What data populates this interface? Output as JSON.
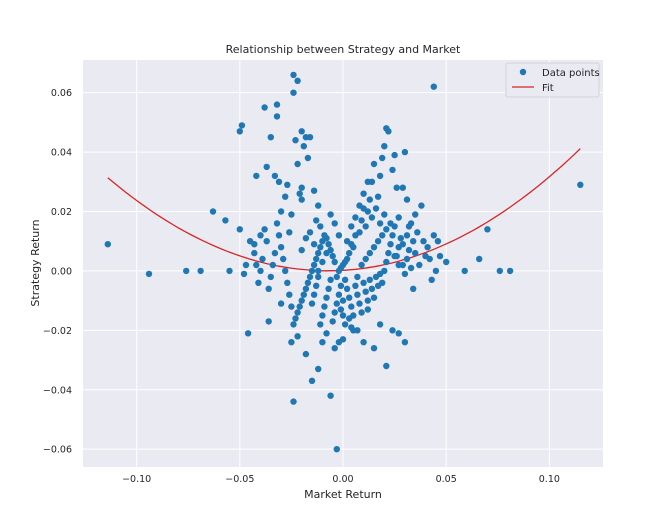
{
  "chart_data": {
    "type": "scatter",
    "title": "Relationship between Strategy and Market",
    "xlabel": "Market Return",
    "ylabel": "Strategy Return",
    "xlim": [
      -0.126,
      0.126
    ],
    "ylim": [
      -0.066,
      0.071
    ],
    "x_ticks": [
      -0.1,
      -0.05,
      0.0,
      0.05,
      0.1
    ],
    "x_tick_labels": [
      "−0.10",
      "−0.05",
      "0.00",
      "0.05",
      "0.10"
    ],
    "y_ticks": [
      -0.06,
      -0.04,
      -0.02,
      0.0,
      0.02,
      0.04,
      0.06
    ],
    "y_tick_labels": [
      "−0.06",
      "−0.04",
      "−0.02",
      "0.00",
      "0.02",
      "0.04",
      "0.06"
    ],
    "grid": true,
    "legend_position": "top-right",
    "colors": {
      "points": "#1f77b4",
      "fit": "#d62728",
      "background": "#eaeaf2",
      "grid": "#ffffff"
    },
    "series": [
      {
        "name": "Data points",
        "kind": "scatter",
        "points": [
          [
            -0.114,
            0.009
          ],
          [
            -0.094,
            -0.001
          ],
          [
            -0.076,
            0.0
          ],
          [
            -0.069,
            0.0
          ],
          [
            -0.063,
            0.02
          ],
          [
            -0.057,
            0.017
          ],
          [
            -0.055,
            0.0
          ],
          [
            -0.05,
            0.047
          ],
          [
            -0.049,
            0.049
          ],
          [
            -0.05,
            0.014
          ],
          [
            -0.048,
            -0.001
          ],
          [
            -0.046,
            -0.021
          ],
          [
            -0.045,
            0.01
          ],
          [
            -0.047,
            0.002
          ],
          [
            -0.043,
            0.009
          ],
          [
            -0.042,
            0.032
          ],
          [
            -0.04,
            0.012
          ],
          [
            -0.038,
            0.055
          ],
          [
            -0.037,
            0.035
          ],
          [
            -0.035,
            0.045
          ],
          [
            -0.033,
            0.032
          ],
          [
            -0.032,
            0.056
          ],
          [
            -0.032,
            0.052
          ],
          [
            -0.031,
            0.03
          ],
          [
            -0.03,
            0.02
          ],
          [
            -0.028,
            0.025
          ],
          [
            -0.027,
            0.029
          ],
          [
            -0.026,
            0.013
          ],
          [
            -0.025,
            0.019
          ],
          [
            -0.024,
            -0.044
          ],
          [
            -0.024,
            0.06
          ],
          [
            -0.024,
            0.066
          ],
          [
            -0.023,
            0.044
          ],
          [
            -0.022,
            0.036
          ],
          [
            -0.022,
            0.064
          ],
          [
            -0.021,
            0.026
          ],
          [
            -0.02,
            0.028
          ],
          [
            -0.02,
            0.047
          ],
          [
            -0.02,
            0.024
          ],
          [
            -0.019,
            0.042
          ],
          [
            -0.018,
            0.045
          ],
          [
            -0.017,
            0.038
          ],
          [
            -0.016,
            0.045
          ],
          [
            -0.014,
            0.027
          ],
          [
            -0.013,
            0.017
          ],
          [
            -0.012,
            0.022
          ],
          [
            -0.011,
            0.015
          ],
          [
            -0.036,
            -0.017
          ],
          [
            -0.03,
            -0.011
          ],
          [
            -0.025,
            -0.024
          ],
          [
            -0.022,
            -0.022
          ],
          [
            -0.018,
            -0.028
          ],
          [
            -0.015,
            -0.037
          ],
          [
            -0.012,
            -0.033
          ],
          [
            -0.01,
            -0.024
          ],
          [
            -0.008,
            -0.021
          ],
          [
            -0.006,
            -0.042
          ],
          [
            -0.004,
            -0.026
          ],
          [
            -0.003,
            -0.06
          ],
          [
            -0.002,
            -0.024
          ],
          [
            0.0,
            -0.023
          ],
          [
            0.004,
            -0.019
          ],
          [
            0.007,
            -0.02
          ],
          [
            0.01,
            -0.024
          ],
          [
            0.012,
            -0.013
          ],
          [
            0.015,
            -0.026
          ],
          [
            0.018,
            -0.018
          ],
          [
            0.021,
            -0.032
          ],
          [
            0.024,
            -0.02
          ],
          [
            0.027,
            -0.021
          ],
          [
            0.03,
            -0.024
          ],
          [
            0.044,
            0.062
          ],
          [
            0.115,
            0.029
          ],
          [
            0.081,
            0.0
          ],
          [
            0.076,
            0.0
          ],
          [
            0.07,
            0.014
          ],
          [
            0.066,
            0.004
          ],
          [
            0.059,
            0.0
          ],
          [
            0.05,
            0.003
          ],
          [
            0.046,
            0.01
          ],
          [
            0.045,
            0.0
          ],
          [
            0.044,
            0.012
          ],
          [
            0.043,
            -0.003
          ],
          [
            0.04,
            0.005
          ],
          [
            0.039,
            0.01
          ],
          [
            0.037,
            0.002
          ],
          [
            0.035,
            0.006
          ],
          [
            0.034,
            -0.006
          ],
          [
            0.032,
            0.015
          ],
          [
            0.031,
            0.024
          ],
          [
            0.03,
            0.04
          ],
          [
            0.029,
            0.028
          ],
          [
            0.027,
            0.018
          ],
          [
            0.026,
            0.028
          ],
          [
            0.025,
            0.039
          ],
          [
            0.024,
            0.034
          ],
          [
            0.022,
            0.047
          ],
          [
            0.021,
            0.048
          ],
          [
            0.02,
            0.042
          ],
          [
            0.019,
            0.038
          ],
          [
            0.018,
            0.032
          ],
          [
            0.017,
            0.025
          ],
          [
            0.015,
            0.036
          ],
          [
            0.014,
            0.03
          ],
          [
            0.013,
            0.024
          ],
          [
            0.012,
            0.02
          ],
          [
            0.011,
            0.015
          ],
          [
            0.01,
            0.021
          ],
          [
            0.009,
            0.017
          ],
          [
            0.008,
            0.013
          ],
          [
            0.006,
            0.012
          ],
          [
            0.005,
            0.008
          ],
          [
            0.004,
            0.009
          ],
          [
            0.003,
            0.006
          ],
          [
            0.002,
            0.004
          ],
          [
            0.001,
            0.003
          ],
          [
            0.0,
            0.002
          ],
          [
            -0.001,
            0.001
          ],
          [
            -0.002,
            0.0
          ],
          [
            -0.003,
            -0.002
          ],
          [
            -0.004,
            0.003
          ],
          [
            -0.005,
            0.005
          ],
          [
            -0.006,
            0.007
          ],
          [
            -0.007,
            0.009
          ],
          [
            -0.008,
            0.011
          ],
          [
            -0.009,
            0.012
          ],
          [
            -0.01,
            0.01
          ],
          [
            -0.011,
            0.008
          ],
          [
            -0.012,
            0.006
          ],
          [
            -0.013,
            0.004
          ],
          [
            -0.014,
            0.002
          ],
          [
            -0.015,
            0.0
          ],
          [
            -0.016,
            -0.002
          ],
          [
            -0.017,
            -0.004
          ],
          [
            -0.018,
            -0.006
          ],
          [
            -0.019,
            -0.008
          ],
          [
            -0.02,
            -0.01
          ],
          [
            -0.021,
            -0.012
          ],
          [
            -0.022,
            -0.014
          ],
          [
            -0.023,
            -0.016
          ],
          [
            -0.024,
            -0.018
          ],
          [
            -0.025,
            -0.012
          ],
          [
            -0.026,
            -0.008
          ],
          [
            -0.027,
            -0.004
          ],
          [
            -0.028,
            0.0
          ],
          [
            -0.029,
            0.004
          ],
          [
            -0.03,
            0.008
          ],
          [
            -0.031,
            0.012
          ],
          [
            -0.032,
            0.016
          ],
          [
            -0.033,
            0.006
          ],
          [
            -0.034,
            0.002
          ],
          [
            -0.035,
            -0.002
          ],
          [
            -0.036,
            -0.006
          ],
          [
            -0.037,
            0.01
          ],
          [
            -0.038,
            0.014
          ],
          [
            -0.039,
            0.004
          ],
          [
            -0.04,
            0.0
          ],
          [
            -0.041,
            -0.004
          ],
          [
            -0.042,
            0.002
          ],
          [
            -0.043,
            0.006
          ],
          [
            0.001,
            -0.003
          ],
          [
            0.002,
            -0.006
          ],
          [
            0.003,
            -0.009
          ],
          [
            0.004,
            -0.012
          ],
          [
            0.005,
            -0.015
          ],
          [
            0.006,
            -0.005
          ],
          [
            0.007,
            -0.008
          ],
          [
            0.008,
            -0.011
          ],
          [
            0.009,
            -0.014
          ],
          [
            0.01,
            -0.004
          ],
          [
            0.011,
            -0.007
          ],
          [
            0.012,
            -0.01
          ],
          [
            0.013,
            -0.003
          ],
          [
            0.014,
            -0.006
          ],
          [
            0.015,
            -0.009
          ],
          [
            0.016,
            -0.002
          ],
          [
            0.017,
            -0.005
          ],
          [
            0.018,
            -0.001
          ],
          [
            0.019,
            -0.004
          ],
          [
            0.02,
            0.0
          ],
          [
            0.021,
            0.003
          ],
          [
            0.022,
            0.006
          ],
          [
            0.023,
            0.009
          ],
          [
            0.024,
            0.012
          ],
          [
            0.025,
            0.015
          ],
          [
            0.026,
            0.005
          ],
          [
            0.027,
            0.008
          ],
          [
            0.028,
            0.011
          ],
          [
            0.029,
            0.002
          ],
          [
            0.03,
            -0.001
          ],
          [
            0.031,
            0.004
          ],
          [
            0.032,
            0.007
          ],
          [
            0.033,
            0.001
          ],
          [
            0.034,
            0.01
          ],
          [
            0.036,
            0.013
          ],
          [
            -0.001,
            -0.005
          ],
          [
            -0.002,
            -0.008
          ],
          [
            -0.003,
            -0.011
          ],
          [
            -0.004,
            -0.014
          ],
          [
            -0.005,
            -0.017
          ],
          [
            -0.006,
            -0.003
          ],
          [
            -0.007,
            -0.006
          ],
          [
            -0.008,
            -0.009
          ],
          [
            -0.009,
            -0.012
          ],
          [
            -0.01,
            -0.015
          ],
          [
            -0.011,
            -0.018
          ],
          [
            -0.012,
            -0.002
          ],
          [
            -0.013,
            -0.005
          ],
          [
            -0.014,
            -0.008
          ],
          [
            -0.015,
            -0.011
          ],
          [
            0.002,
            0.01
          ],
          [
            0.004,
            0.015
          ],
          [
            0.006,
            0.018
          ],
          [
            0.008,
            0.022
          ],
          [
            0.01,
            0.026
          ],
          [
            0.012,
            0.03
          ],
          [
            0.014,
            0.018
          ],
          [
            0.016,
            0.021
          ],
          [
            0.018,
            0.016
          ],
          [
            0.02,
            0.019
          ],
          [
            -0.002,
            0.012
          ],
          [
            -0.004,
            0.016
          ],
          [
            -0.006,
            0.019
          ],
          [
            -0.008,
            0.006
          ],
          [
            -0.01,
            0.003
          ],
          [
            -0.012,
            0.0
          ],
          [
            -0.014,
            0.009
          ],
          [
            -0.016,
            0.013
          ],
          [
            -0.018,
            0.011
          ],
          [
            -0.02,
            0.007
          ],
          [
            0.0,
            -0.01
          ],
          [
            0.0,
            -0.015
          ],
          [
            0.001,
            -0.018
          ],
          [
            -0.001,
            -0.013
          ],
          [
            0.003,
            -0.016
          ],
          [
            0.005,
            -0.02
          ],
          [
            0.007,
            -0.002
          ],
          [
            0.009,
            0.002
          ],
          [
            0.011,
            0.004
          ],
          [
            0.013,
            0.006
          ],
          [
            0.015,
            0.008
          ],
          [
            0.017,
            0.01
          ],
          [
            0.019,
            0.012
          ],
          [
            0.021,
            0.014
          ],
          [
            0.023,
            0.016
          ],
          [
            0.025,
            0.005
          ],
          [
            0.027,
            0.002
          ],
          [
            0.029,
            0.009
          ],
          [
            0.031,
            0.012
          ],
          [
            0.033,
            0.016
          ],
          [
            0.035,
            0.019
          ],
          [
            0.038,
            0.022
          ],
          [
            0.041,
            0.008
          ],
          [
            0.042,
            0.004
          ],
          [
            0.047,
            0.005
          ]
        ]
      },
      {
        "name": "Fit",
        "kind": "line",
        "equation": "y = 0.0002 + 0.04 x + 2.75 x^2",
        "x_range": [
          -0.114,
          0.115
        ]
      }
    ]
  }
}
